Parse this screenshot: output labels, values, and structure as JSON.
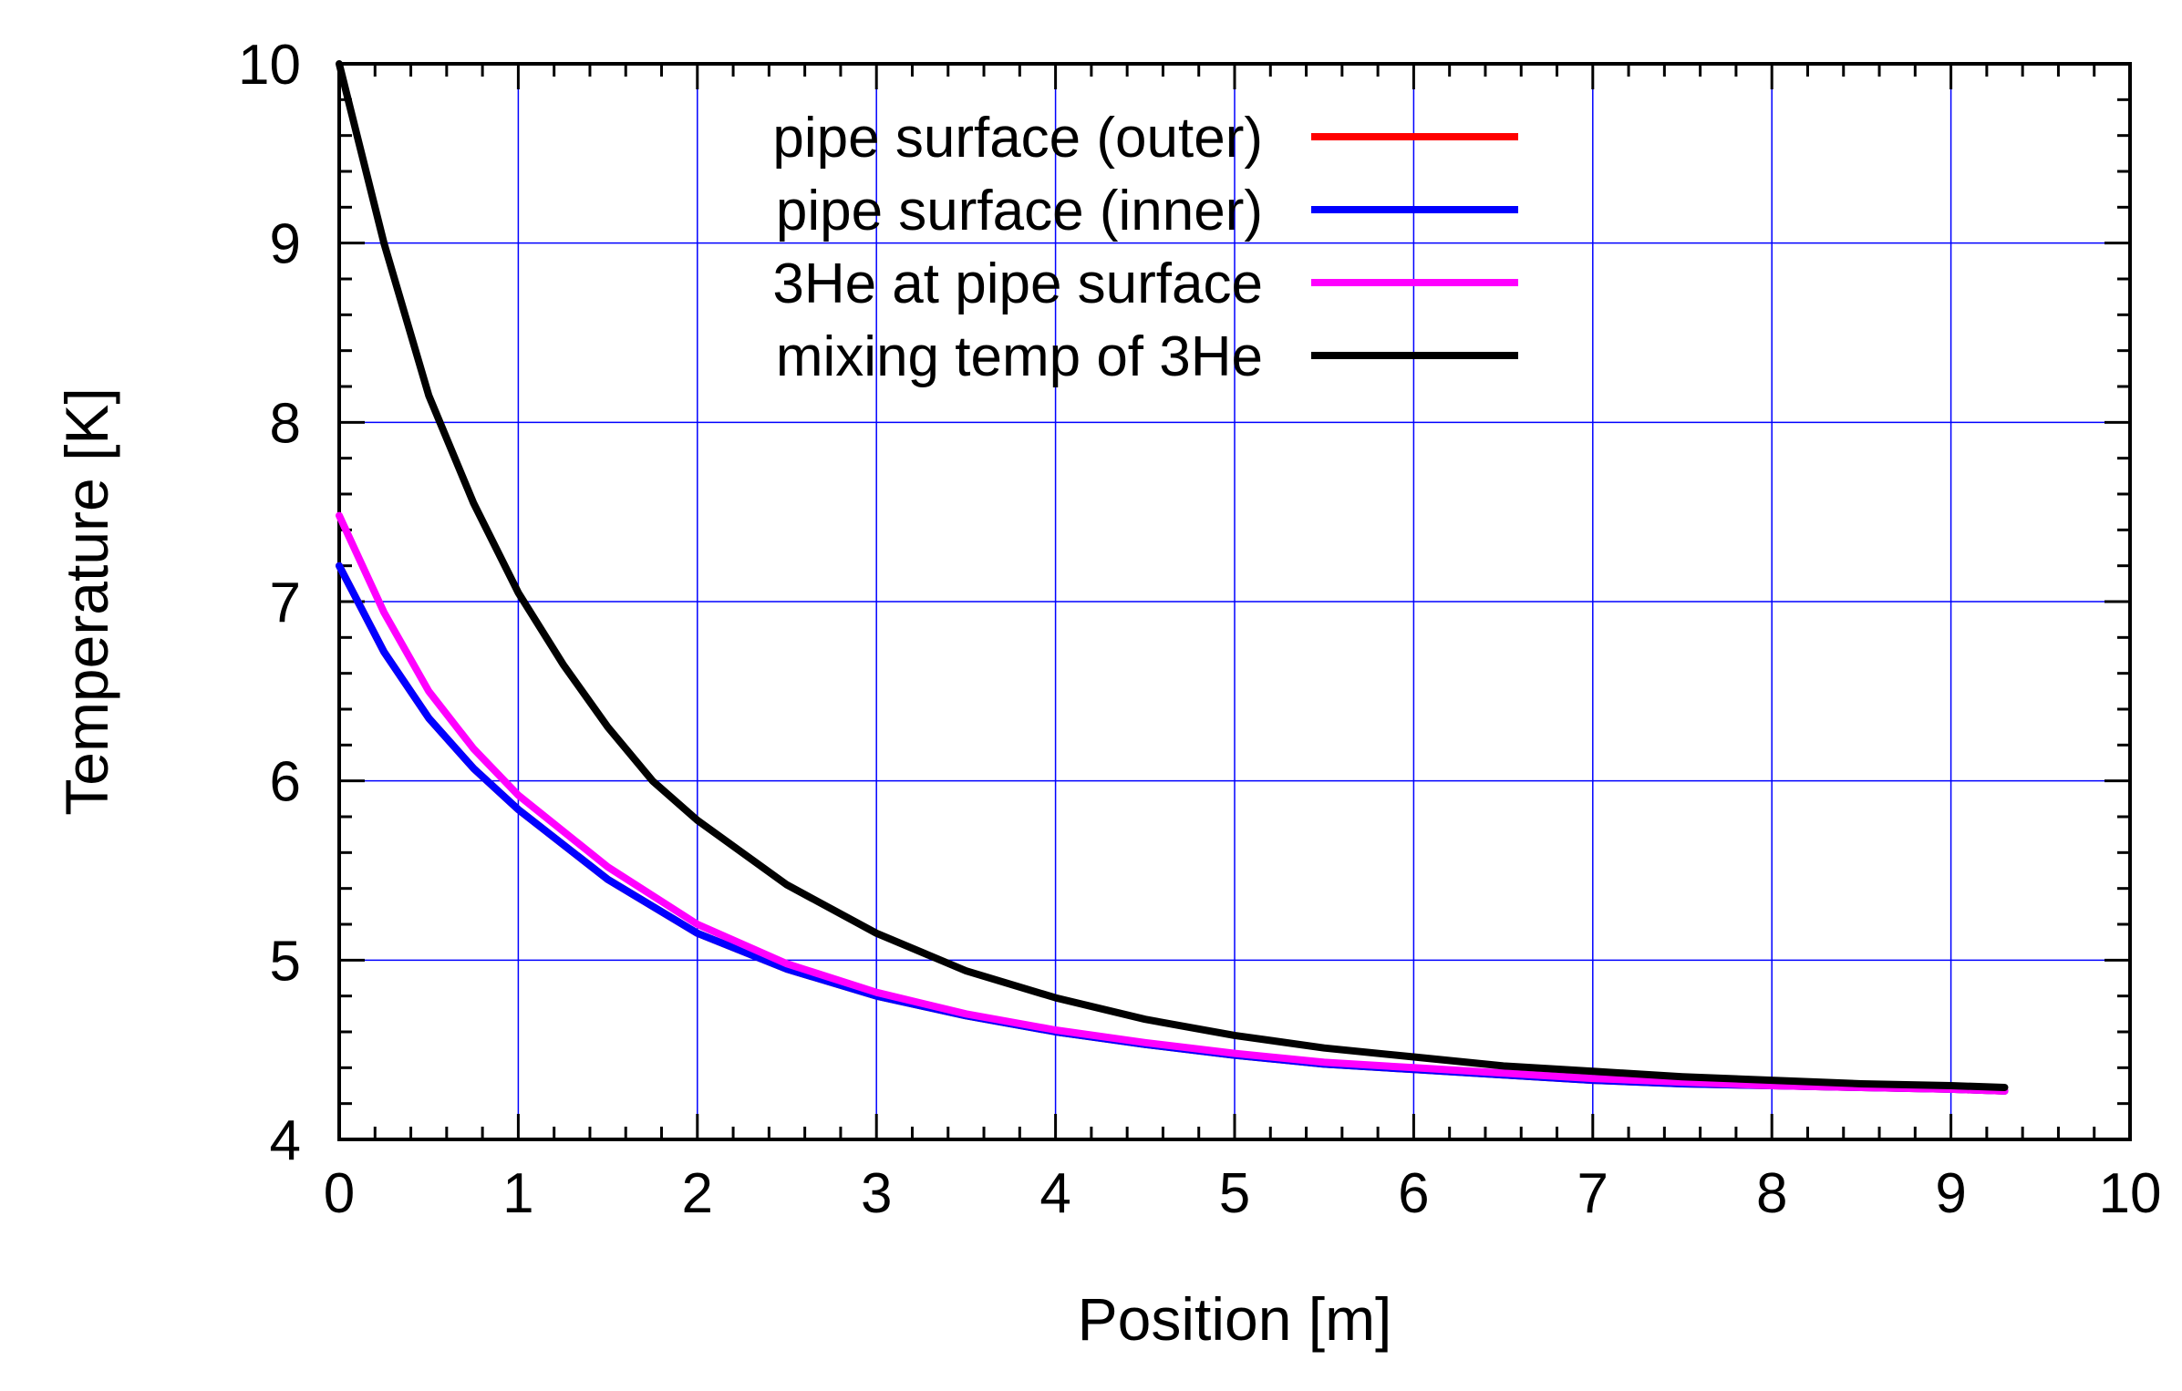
{
  "chart_data": {
    "type": "line",
    "title": "",
    "xlabel": "Position [m]",
    "ylabel": "Temperature [K]",
    "xlim": [
      0,
      10
    ],
    "ylim": [
      4,
      10
    ],
    "xticks": [
      0,
      1,
      2,
      3,
      4,
      5,
      6,
      7,
      8,
      9,
      10
    ],
    "yticks": [
      4,
      5,
      6,
      7,
      8,
      9,
      10
    ],
    "grid": true,
    "grid_color": "#0000ff",
    "legend_position": "top-center",
    "series": [
      {
        "name": "pipe surface (outer)",
        "color": "#ff0000",
        "x": [
          0,
          0.25,
          0.5,
          0.75,
          1,
          1.5,
          2,
          2.5,
          3,
          3.5,
          4,
          4.5,
          5,
          5.5,
          6,
          6.5,
          7,
          7.5,
          8,
          8.5,
          9,
          9.3
        ],
        "y": [
          7.2,
          6.72,
          6.35,
          6.07,
          5.84,
          5.45,
          5.15,
          4.95,
          4.8,
          4.69,
          4.6,
          4.53,
          4.47,
          4.42,
          4.39,
          4.36,
          4.33,
          4.31,
          4.3,
          4.29,
          4.28,
          4.27
        ]
      },
      {
        "name": "pipe surface (inner)",
        "color": "#0000ff",
        "x": [
          0,
          0.25,
          0.5,
          0.75,
          1,
          1.5,
          2,
          2.5,
          3,
          3.5,
          4,
          4.5,
          5,
          5.5,
          6,
          6.5,
          7,
          7.5,
          8,
          8.5,
          9,
          9.3
        ],
        "y": [
          7.2,
          6.72,
          6.35,
          6.07,
          5.84,
          5.45,
          5.15,
          4.95,
          4.8,
          4.69,
          4.6,
          4.53,
          4.47,
          4.42,
          4.39,
          4.36,
          4.33,
          4.31,
          4.3,
          4.29,
          4.28,
          4.27
        ]
      },
      {
        "name": "3He at pipe surface",
        "color": "#ff00ff",
        "x": [
          0,
          0.25,
          0.5,
          0.75,
          1,
          1.5,
          2,
          2.5,
          3,
          3.5,
          4,
          4.5,
          5,
          5.5,
          6,
          6.5,
          7,
          7.5,
          8,
          8.5,
          9,
          9.3
        ],
        "y": [
          7.48,
          6.94,
          6.5,
          6.18,
          5.92,
          5.52,
          5.2,
          4.98,
          4.82,
          4.7,
          4.61,
          4.54,
          4.48,
          4.43,
          4.4,
          4.37,
          4.34,
          4.32,
          4.3,
          4.29,
          4.28,
          4.27
        ]
      },
      {
        "name": "mixing temp of 3He",
        "color": "#000000",
        "x": [
          0,
          0.1,
          0.25,
          0.5,
          0.75,
          1,
          1.25,
          1.5,
          1.75,
          2,
          2.5,
          3,
          3.5,
          4,
          4.5,
          5,
          5.5,
          6,
          6.5,
          7,
          7.5,
          8,
          8.5,
          9,
          9.3
        ],
        "y": [
          10,
          9.6,
          9.0,
          8.15,
          7.55,
          7.05,
          6.65,
          6.3,
          6.0,
          5.78,
          5.42,
          5.15,
          4.94,
          4.79,
          4.67,
          4.58,
          4.51,
          4.46,
          4.41,
          4.38,
          4.35,
          4.33,
          4.31,
          4.3,
          4.29
        ]
      }
    ]
  }
}
